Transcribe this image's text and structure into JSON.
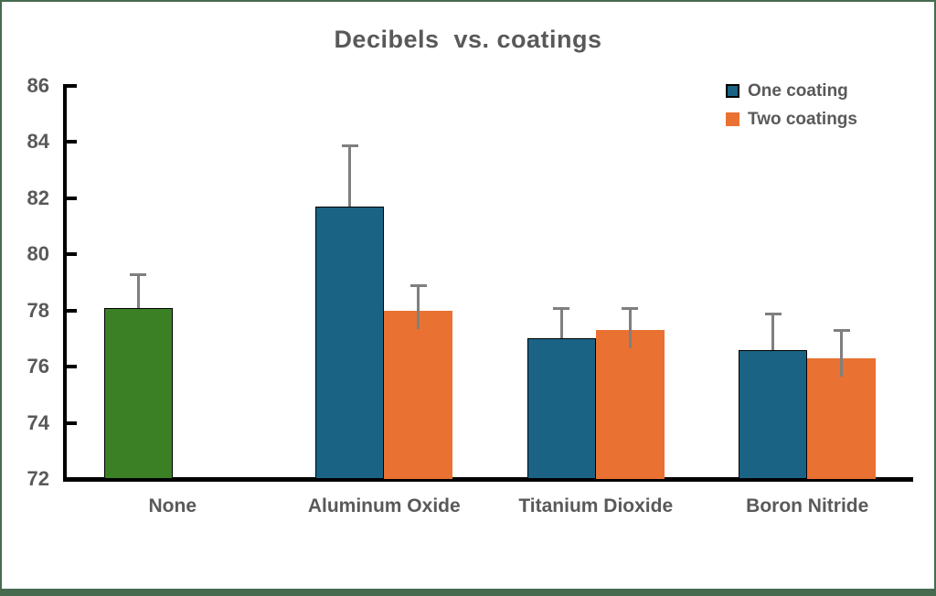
{
  "frame": {
    "border_color": "#466b4f",
    "background": "#ffffff"
  },
  "chart_data": {
    "type": "bar",
    "title": "Decibels  vs. coatings",
    "categories": [
      "None",
      "Aluminum Oxide",
      "Titanium Dioxide",
      "Boron Nitride"
    ],
    "series": [
      {
        "name": "One coating",
        "color": "#1b6385",
        "outline": "#000000",
        "point_colors": [
          "#3c8025",
          null,
          null,
          null
        ],
        "values": [
          78.1,
          81.7,
          77.0,
          76.6
        ],
        "error_top_values": [
          79.3,
          83.9,
          78.1,
          77.9
        ]
      },
      {
        "name": "Two coatings",
        "color": "#e97132",
        "outline": null,
        "point_colors": [
          null,
          null,
          null,
          null
        ],
        "values": [
          null,
          78.0,
          77.3,
          76.3
        ],
        "error_top_values": [
          null,
          78.9,
          78.1,
          77.3
        ]
      }
    ],
    "ylim": [
      72,
      86
    ],
    "ytick_step": 2,
    "ytick_labels": [
      "72",
      "74",
      "76",
      "78",
      "80",
      "82",
      "84",
      "86"
    ],
    "grid": false,
    "legend_position": "top-right",
    "error_bar_color": "#7f7f7f",
    "text_color": "#595959",
    "axis_color": "#000000"
  }
}
